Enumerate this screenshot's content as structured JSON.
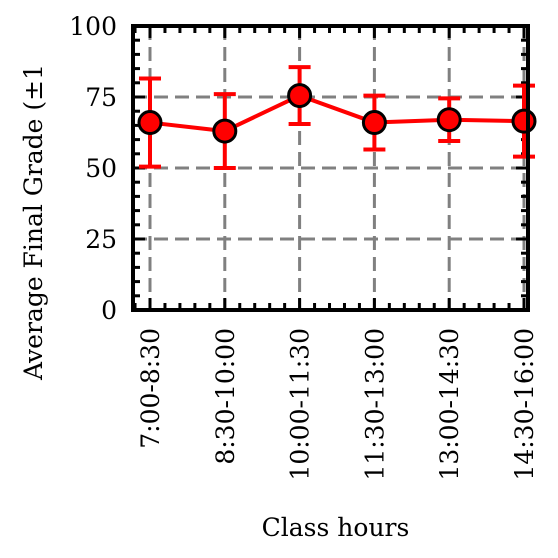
{
  "chart_data": {
    "type": "line",
    "title": "",
    "xlabel": "Class hours",
    "ylabel": "Average Final Grade (±1",
    "categories": [
      "7:00-8:30",
      "8:30-10:00",
      "10:00-11:30",
      "11:30-13:00",
      "13:00-14:30",
      "14:30-16:00"
    ],
    "series": [
      {
        "values": [
          66,
          63,
          75.5,
          66,
          67,
          66.5
        ],
        "error": [
          15.5,
          13,
          10,
          9.5,
          7.5,
          12.5
        ],
        "color": "#ff0000",
        "marker_color": "#ff0000",
        "marker_edge": "#000000"
      }
    ],
    "ylim": [
      0,
      100
    ],
    "yticks": [
      0,
      25,
      50,
      75,
      100
    ],
    "grid": true,
    "grid_style": "dashed",
    "grid_color": "#808080",
    "legend": "none"
  }
}
